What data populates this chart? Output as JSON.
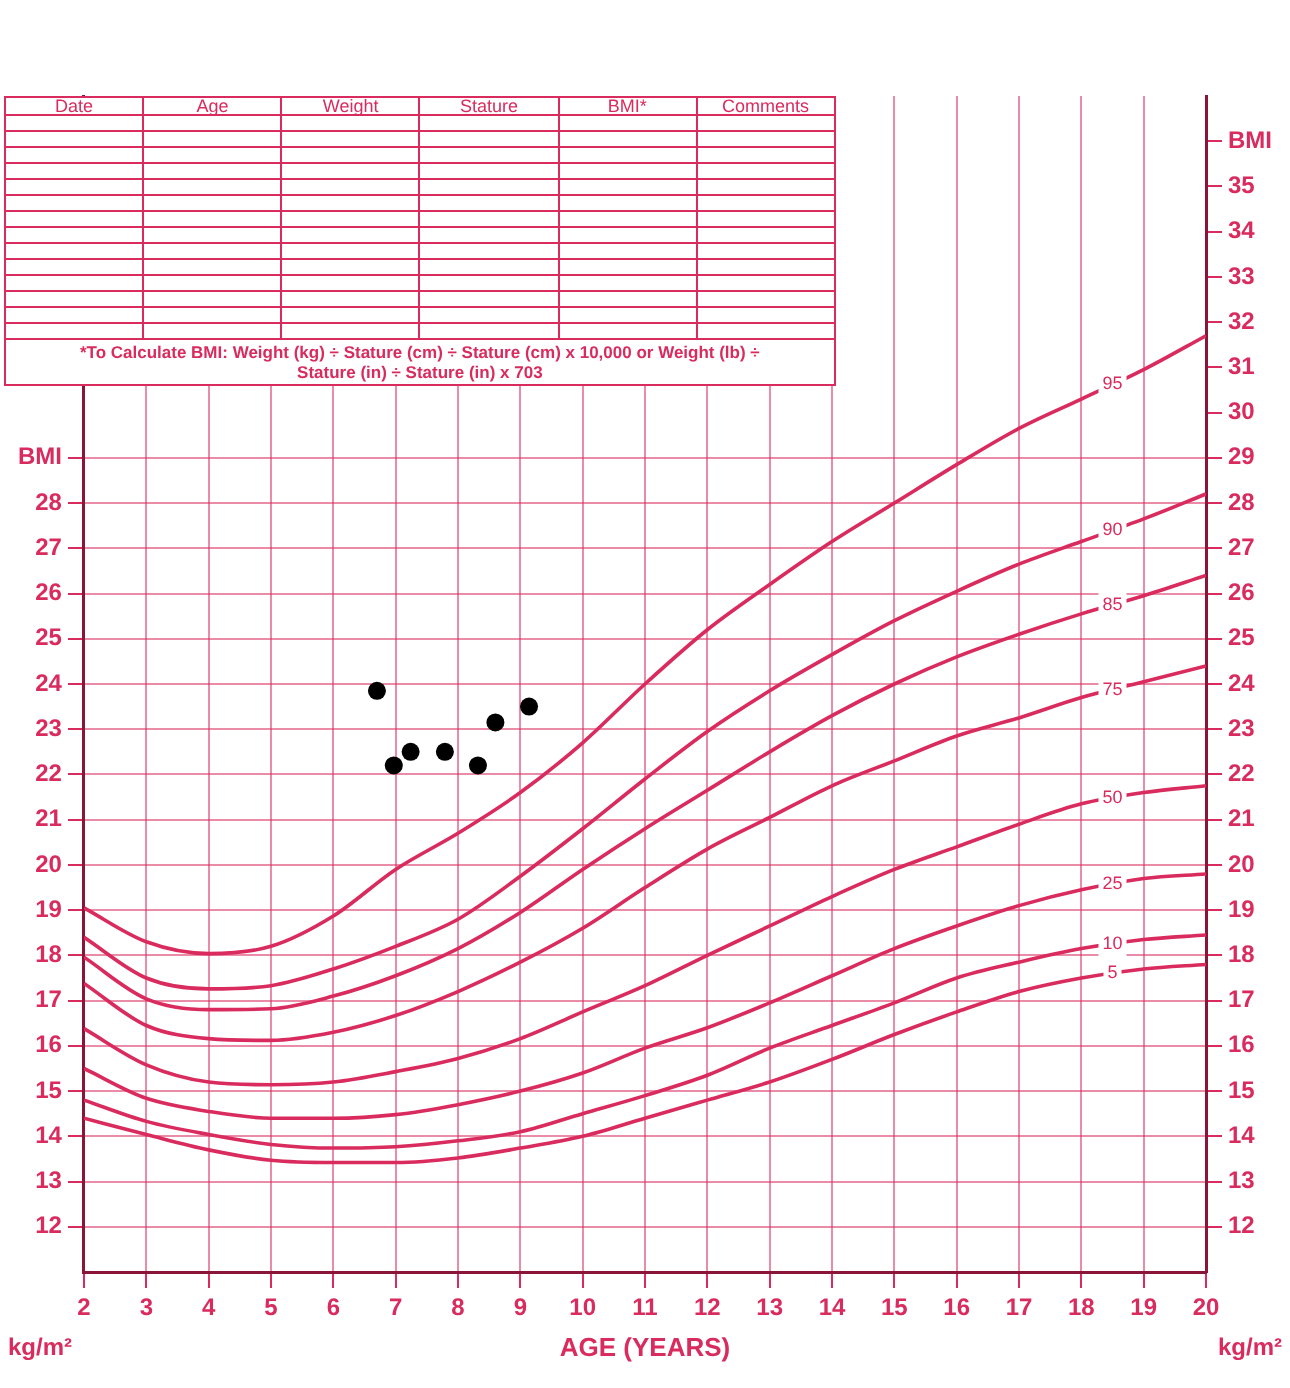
{
  "chart_data": {
    "type": "line",
    "xlabel": "AGE (YEARS)",
    "ylabel": "kg/m²",
    "y2label": "kg/m²",
    "annotations": [
      "Date",
      "Age",
      "Weight",
      "Stature",
      "BMI*",
      "Comments",
      "*To Calculate BMI: Weight (kg) ÷ Stature (cm) ÷ Stature (cm) x 10,000 or Weight (lb) ÷ Stature (in) ÷ Stature (in) x 703"
    ],
    "x": [
      2,
      3,
      4,
      5,
      6,
      7,
      8,
      9,
      10,
      11,
      12,
      13,
      14,
      15,
      16,
      17,
      18,
      19,
      20
    ],
    "xlim": [
      2,
      20
    ],
    "xticks": [
      2,
      3,
      4,
      5,
      6,
      7,
      8,
      9,
      10,
      11,
      12,
      13,
      14,
      15,
      16,
      17,
      18,
      19,
      20
    ],
    "ylim": [
      11,
      37
    ],
    "yticks": [
      12,
      13,
      14,
      15,
      16,
      17,
      18,
      19,
      20,
      21,
      22,
      23,
      24,
      25,
      26,
      27,
      28,
      {
        "value": 29,
        "label": "BMI"
      }
    ],
    "y2lim": [
      11,
      37
    ],
    "y2ticks": [
      12,
      13,
      14,
      15,
      16,
      17,
      18,
      19,
      20,
      21,
      22,
      23,
      24,
      25,
      26,
      27,
      28,
      29,
      30,
      31,
      32,
      33,
      34,
      35,
      {
        "value": 36,
        "label": "BMI"
      }
    ],
    "grid": true,
    "legend": false,
    "marker": "none",
    "line_style": "solid",
    "series": [
      {
        "name": "95",
        "color": "#d92b5e",
        "values": [
          19.05,
          18.3,
          18.04,
          18.2,
          18.87,
          19.9,
          20.7,
          21.6,
          22.7,
          24.0,
          25.2,
          26.2,
          27.15,
          28.0,
          28.85,
          29.65,
          30.3,
          30.95,
          31.7
        ]
      },
      {
        "name": "90",
        "color": "#d92b5e",
        "values": [
          18.4,
          17.5,
          17.26,
          17.33,
          17.7,
          18.2,
          18.8,
          19.75,
          20.8,
          21.9,
          22.95,
          23.85,
          24.65,
          25.4,
          26.05,
          26.65,
          27.15,
          27.65,
          28.2
        ]
      },
      {
        "name": "85",
        "color": "#d92b5e",
        "values": [
          17.96,
          17.04,
          16.8,
          16.82,
          17.1,
          17.55,
          18.15,
          18.95,
          19.9,
          20.8,
          21.65,
          22.5,
          23.3,
          24.0,
          24.6,
          25.1,
          25.55,
          25.95,
          26.4
        ]
      },
      {
        "name": "75",
        "color": "#d92b5e",
        "values": [
          17.38,
          16.45,
          16.16,
          16.12,
          16.3,
          16.67,
          17.2,
          17.85,
          18.6,
          19.5,
          20.35,
          21.05,
          21.75,
          22.3,
          22.85,
          23.25,
          23.7,
          24.05,
          24.4
        ]
      },
      {
        "name": "50",
        "color": "#d92b5e",
        "values": [
          16.38,
          15.58,
          15.2,
          15.14,
          15.2,
          15.43,
          15.72,
          16.16,
          16.75,
          17.33,
          18.0,
          18.65,
          19.3,
          19.9,
          20.4,
          20.9,
          21.35,
          21.6,
          21.75
        ]
      },
      {
        "name": "25",
        "color": "#d92b5e",
        "values": [
          15.5,
          14.84,
          14.55,
          14.4,
          14.4,
          14.48,
          14.7,
          15.0,
          15.4,
          15.95,
          16.4,
          16.95,
          17.55,
          18.15,
          18.65,
          19.1,
          19.45,
          19.7,
          19.8
        ]
      },
      {
        "name": "10",
        "color": "#d92b5e",
        "values": [
          14.8,
          14.33,
          14.04,
          13.82,
          13.74,
          13.77,
          13.9,
          14.1,
          14.5,
          14.9,
          15.35,
          15.95,
          16.45,
          16.95,
          17.5,
          17.85,
          18.15,
          18.35,
          18.45
        ]
      },
      {
        "name": "5",
        "color": "#d92b5e",
        "values": [
          14.4,
          14.04,
          13.7,
          13.47,
          13.42,
          13.42,
          13.52,
          13.74,
          14.0,
          14.4,
          14.8,
          15.2,
          15.7,
          16.25,
          16.75,
          17.2,
          17.5,
          17.7,
          17.8
        ]
      },
      {
        "type": "scatter",
        "marker": "circle",
        "color": "#000000",
        "x": [
          6.7,
          6.97,
          7.24,
          7.79,
          8.32,
          8.6,
          9.14
        ],
        "values": [
          23.85,
          22.2,
          22.5,
          22.5,
          22.2,
          23.15,
          23.5
        ]
      }
    ]
  }
}
